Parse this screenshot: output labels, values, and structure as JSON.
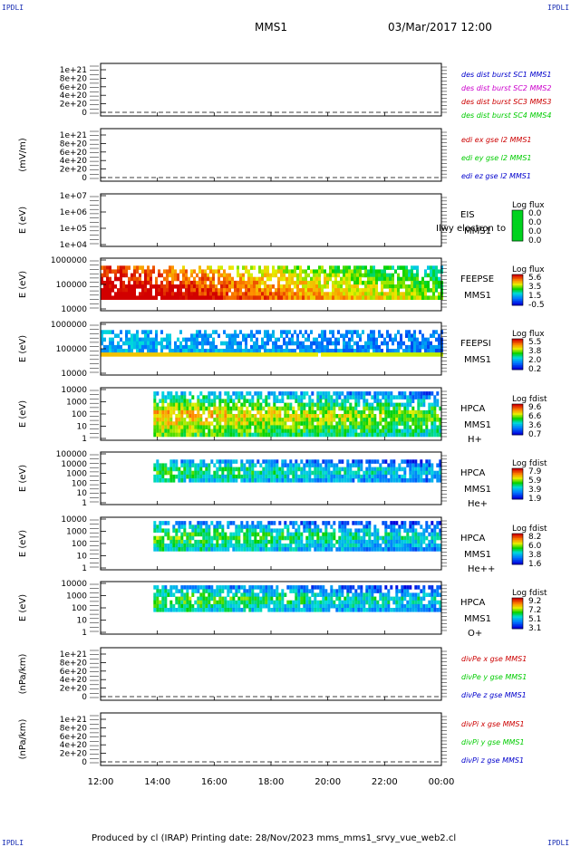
{
  "header": {
    "corner_label": "IPDLI",
    "spacecraft": "MMS1",
    "datetime": "03/Mar/2017 12:00"
  },
  "footer": {
    "text": "Produced by cl (IRAP)   Printing date: 28/Nov/2023   mms_mms1_srvy_vue_web2.cl"
  },
  "colors": {
    "blue": "#0000cc",
    "magenta": "#cc00cc",
    "red": "#cc0000",
    "green": "#00cc00"
  },
  "chart_data": {
    "type": "heatmap",
    "x_axis": {
      "tick_labels": [
        "12:00",
        "14:00",
        "16:00",
        "18:00",
        "20:00",
        "22:00",
        "00:00"
      ],
      "range": [
        "12:00",
        "00:00"
      ]
    },
    "panels": [
      {
        "kind": "line",
        "ylabel": "",
        "yticks": [
          "1e+21",
          "8e+20",
          "6e+20",
          "4e+20",
          "2e+20",
          "0"
        ],
        "legend": [
          {
            "text": "des dist burst SC1 MMS1",
            "color": "blue"
          },
          {
            "text": "des dist burst SC2 MMS2",
            "color": "magenta"
          },
          {
            "text": "des dist burst SC3 MMS3",
            "color": "red"
          },
          {
            "text": "des dist burst SC4 MMS4",
            "color": "green"
          }
        ]
      },
      {
        "kind": "line",
        "ylabel": "(mV/m)",
        "yticks": [
          "1e+21",
          "8e+20",
          "6e+20",
          "4e+20",
          "2e+20",
          "0"
        ],
        "legend": [
          {
            "text": "edi ex gse l2 MMS1",
            "color": "red"
          },
          {
            "text": "edi ey gse l2 MMS1",
            "color": "green"
          },
          {
            "text": "edi ez gse l2 MMS1",
            "color": "blue"
          }
        ]
      },
      {
        "kind": "spectrogram",
        "ylabel": "E (eV)",
        "yticks": [
          "1e+07",
          "1e+06",
          "1e+05",
          "1e+04"
        ],
        "instrument": [
          "EIS",
          "MMS1"
        ],
        "overlay": "Ilwy electron to",
        "cbar_title": "Log flux",
        "cbar_ticks": [
          "0.0",
          "0.0",
          "0.0",
          "0.0"
        ],
        "start_frac": 1.0,
        "band": [
          0.0,
          0.0
        ],
        "base": 0.0,
        "noise": 0.0,
        "colors": false
      },
      {
        "kind": "spectrogram",
        "ylabel": "E (eV)",
        "yticks": [
          "1000000",
          "100000",
          "10000"
        ],
        "instrument": [
          "FEEPSE",
          "MMS1"
        ],
        "cbar_title": "Log flux",
        "cbar_ticks": [
          "5.6",
          "3.5",
          "1.5",
          "-0.5"
        ],
        "start_frac": 0.0,
        "band": [
          0.08,
          0.72
        ],
        "base": 0.92,
        "noise": 0.45
      },
      {
        "kind": "spectrogram",
        "ylabel": "E (eV)",
        "yticks": [
          "1000000",
          "100000",
          "10000"
        ],
        "instrument": [
          "FEEPSI",
          "MMS1"
        ],
        "cbar_title": "Log flux",
        "cbar_ticks": [
          "5.5",
          "3.8",
          "2.0",
          "0.2"
        ],
        "start_frac": 0.0,
        "band": [
          0.08,
          0.58
        ],
        "base": 0.65,
        "noise": 0.6
      },
      {
        "kind": "spectrogram",
        "ylabel": "E (eV)",
        "yticks": [
          "10000",
          "1000",
          "100",
          "10",
          "1"
        ],
        "instrument": [
          "HPCA",
          "MMS1",
          "H+"
        ],
        "cbar_title": "Log fdist",
        "cbar_ticks": [
          "9.6",
          "6.6",
          "3.6",
          "0.7"
        ],
        "start_frac": 0.155,
        "band": [
          0.05,
          0.9
        ],
        "base": 0.72,
        "noise": 0.35
      },
      {
        "kind": "spectrogram",
        "ylabel": "E (eV)",
        "yticks": [
          "100000",
          "10000",
          "1000",
          "100",
          "10",
          "1"
        ],
        "instrument": [
          "HPCA",
          "MMS1",
          "He+"
        ],
        "cbar_title": "Log fdist",
        "cbar_ticks": [
          "7.9",
          "5.9",
          "3.9",
          "1.9"
        ],
        "start_frac": 0.155,
        "band": [
          0.1,
          0.55
        ],
        "base": 0.5,
        "noise": 0.4
      },
      {
        "kind": "spectrogram",
        "ylabel": "E (eV)",
        "yticks": [
          "10000",
          "1000",
          "100",
          "10",
          "1"
        ],
        "instrument": [
          "HPCA",
          "MMS1",
          "He++"
        ],
        "cbar_title": "Log fdist",
        "cbar_ticks": [
          "8.2",
          "6.0",
          "3.8",
          "1.6"
        ],
        "start_frac": 0.155,
        "band": [
          0.05,
          0.6
        ],
        "base": 0.55,
        "noise": 0.4
      },
      {
        "kind": "spectrogram",
        "ylabel": "E (eV)",
        "yticks": [
          "10000",
          "1000",
          "100",
          "10",
          "1"
        ],
        "instrument": [
          "HPCA",
          "MMS1",
          "O+"
        ],
        "cbar_title": "Log fdist",
        "cbar_ticks": [
          "9.2",
          "7.2",
          "5.1",
          "3.1"
        ],
        "start_frac": 0.155,
        "band": [
          0.05,
          0.55
        ],
        "base": 0.55,
        "noise": 0.35
      },
      {
        "kind": "line",
        "ylabel": "(nPa/km)",
        "yticks": [
          "1e+21",
          "8e+20",
          "6e+20",
          "4e+20",
          "2e+20",
          "0"
        ],
        "legend": [
          {
            "text": "divPe x gse MMS1",
            "color": "red"
          },
          {
            "text": "divPe y gse MMS1",
            "color": "green"
          },
          {
            "text": "divPe z gse MMS1",
            "color": "blue"
          }
        ]
      },
      {
        "kind": "line",
        "ylabel": "(nPa/km)",
        "yticks": [
          "1e+21",
          "8e+20",
          "6e+20",
          "4e+20",
          "2e+20",
          "0"
        ],
        "legend": [
          {
            "text": "divPi x gse MMS1",
            "color": "red"
          },
          {
            "text": "divPi y gse MMS1",
            "color": "green"
          },
          {
            "text": "divPi z gse MMS1",
            "color": "blue"
          }
        ]
      }
    ]
  }
}
